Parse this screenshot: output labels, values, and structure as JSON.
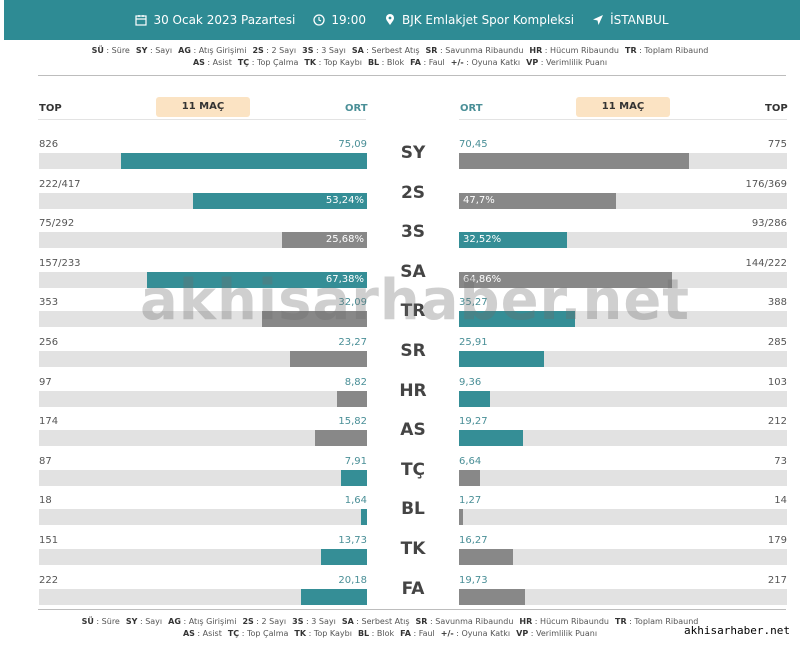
{
  "header": {
    "date": "30 Ocak 2023 Pazartesi",
    "time": "19:00",
    "venue": "BJK Emlakjet Spor Kompleksi",
    "city": "İSTANBUL",
    "bg_color": "#2e8b94"
  },
  "legend": {
    "line1": [
      {
        "code": "SÜ",
        "desc": "Süre"
      },
      {
        "code": "SY",
        "desc": "Sayı"
      },
      {
        "code": "AG",
        "desc": "Atış Girişimi"
      },
      {
        "code": "2S",
        "desc": "2 Sayı"
      },
      {
        "code": "3S",
        "desc": "3 Sayı"
      },
      {
        "code": "SA",
        "desc": "Serbest Atış"
      },
      {
        "code": "SR",
        "desc": "Savunma Ribaundu"
      },
      {
        "code": "HR",
        "desc": "Hücum Ribaundu"
      },
      {
        "code": "TR",
        "desc": "Toplam Ribaund"
      }
    ],
    "line2": [
      {
        "code": "AS",
        "desc": "Asist"
      },
      {
        "code": "TÇ",
        "desc": "Top Çalma"
      },
      {
        "code": "TK",
        "desc": "Top Kaybı"
      },
      {
        "code": "BL",
        "desc": "Blok"
      },
      {
        "code": "FA",
        "desc": "Faul"
      },
      {
        "code": "+/-",
        "desc": "Oyuna Katkı"
      },
      {
        "code": "VP",
        "desc": "Verimlilik Puanı"
      }
    ]
  },
  "columns": {
    "left_total": "TOP",
    "left_avg": "ORT",
    "right_avg": "ORT",
    "right_total": "TOP",
    "games_left": "11 MAÇ",
    "games_right": "11 MAÇ"
  },
  "colors": {
    "leader": "#358e96",
    "other": "#888888",
    "track": "#e2e2e2"
  },
  "stats": [
    {
      "code": "SY",
      "left": {
        "total": "826",
        "avg": "75,09",
        "share": 0.75,
        "color": "teal",
        "pct": ""
      },
      "right": {
        "total": "775",
        "avg": "70,45",
        "share": 0.7,
        "color": "gray",
        "pct": ""
      }
    },
    {
      "code": "2S",
      "left": {
        "total": "222/417",
        "avg": "",
        "share": 0.53,
        "color": "teal",
        "pct": "53,24%"
      },
      "right": {
        "total": "176/369",
        "avg": "",
        "share": 0.48,
        "color": "gray",
        "pct": "47,7%"
      }
    },
    {
      "code": "3S",
      "left": {
        "total": "75/292",
        "avg": "",
        "share": 0.26,
        "color": "gray",
        "pct": "25,68%"
      },
      "right": {
        "total": "93/286",
        "avg": "",
        "share": 0.33,
        "color": "teal",
        "pct": "32,52%"
      }
    },
    {
      "code": "SA",
      "left": {
        "total": "157/233",
        "avg": "",
        "share": 0.67,
        "color": "teal",
        "pct": "67,38%"
      },
      "right": {
        "total": "144/222",
        "avg": "",
        "share": 0.65,
        "color": "gray",
        "pct": "64,86%"
      }
    },
    {
      "code": "TR",
      "left": {
        "total": "353",
        "avg": "32,09",
        "share": 0.32,
        "color": "gray",
        "pct": ""
      },
      "right": {
        "total": "388",
        "avg": "35,27",
        "share": 0.355,
        "color": "teal",
        "pct": ""
      }
    },
    {
      "code": "SR",
      "left": {
        "total": "256",
        "avg": "23,27",
        "share": 0.235,
        "color": "gray",
        "pct": ""
      },
      "right": {
        "total": "285",
        "avg": "25,91",
        "share": 0.26,
        "color": "teal",
        "pct": ""
      }
    },
    {
      "code": "HR",
      "left": {
        "total": "97",
        "avg": "8,82",
        "share": 0.09,
        "color": "gray",
        "pct": ""
      },
      "right": {
        "total": "103",
        "avg": "9,36",
        "share": 0.095,
        "color": "teal",
        "pct": ""
      }
    },
    {
      "code": "AS",
      "left": {
        "total": "174",
        "avg": "15,82",
        "share": 0.16,
        "color": "gray",
        "pct": ""
      },
      "right": {
        "total": "212",
        "avg": "19,27",
        "share": 0.195,
        "color": "teal",
        "pct": ""
      }
    },
    {
      "code": "TÇ",
      "left": {
        "total": "87",
        "avg": "7,91",
        "share": 0.08,
        "color": "teal",
        "pct": ""
      },
      "right": {
        "total": "73",
        "avg": "6,64",
        "share": 0.065,
        "color": "gray",
        "pct": ""
      }
    },
    {
      "code": "BL",
      "left": {
        "total": "18",
        "avg": "1,64",
        "share": 0.017,
        "color": "teal",
        "pct": ""
      },
      "right": {
        "total": "14",
        "avg": "1,27",
        "share": 0.013,
        "color": "gray",
        "pct": ""
      }
    },
    {
      "code": "TK",
      "left": {
        "total": "151",
        "avg": "13,73",
        "share": 0.14,
        "color": "teal",
        "pct": ""
      },
      "right": {
        "total": "179",
        "avg": "16,27",
        "share": 0.165,
        "color": "gray",
        "pct": ""
      }
    },
    {
      "code": "FA",
      "left": {
        "total": "222",
        "avg": "20,18",
        "share": 0.2,
        "color": "teal",
        "pct": ""
      },
      "right": {
        "total": "217",
        "avg": "19,73",
        "share": 0.2,
        "color": "gray",
        "pct": ""
      }
    }
  ],
  "watermark": "akhisarhaber.net",
  "site_label": "akhisarhaber.net"
}
